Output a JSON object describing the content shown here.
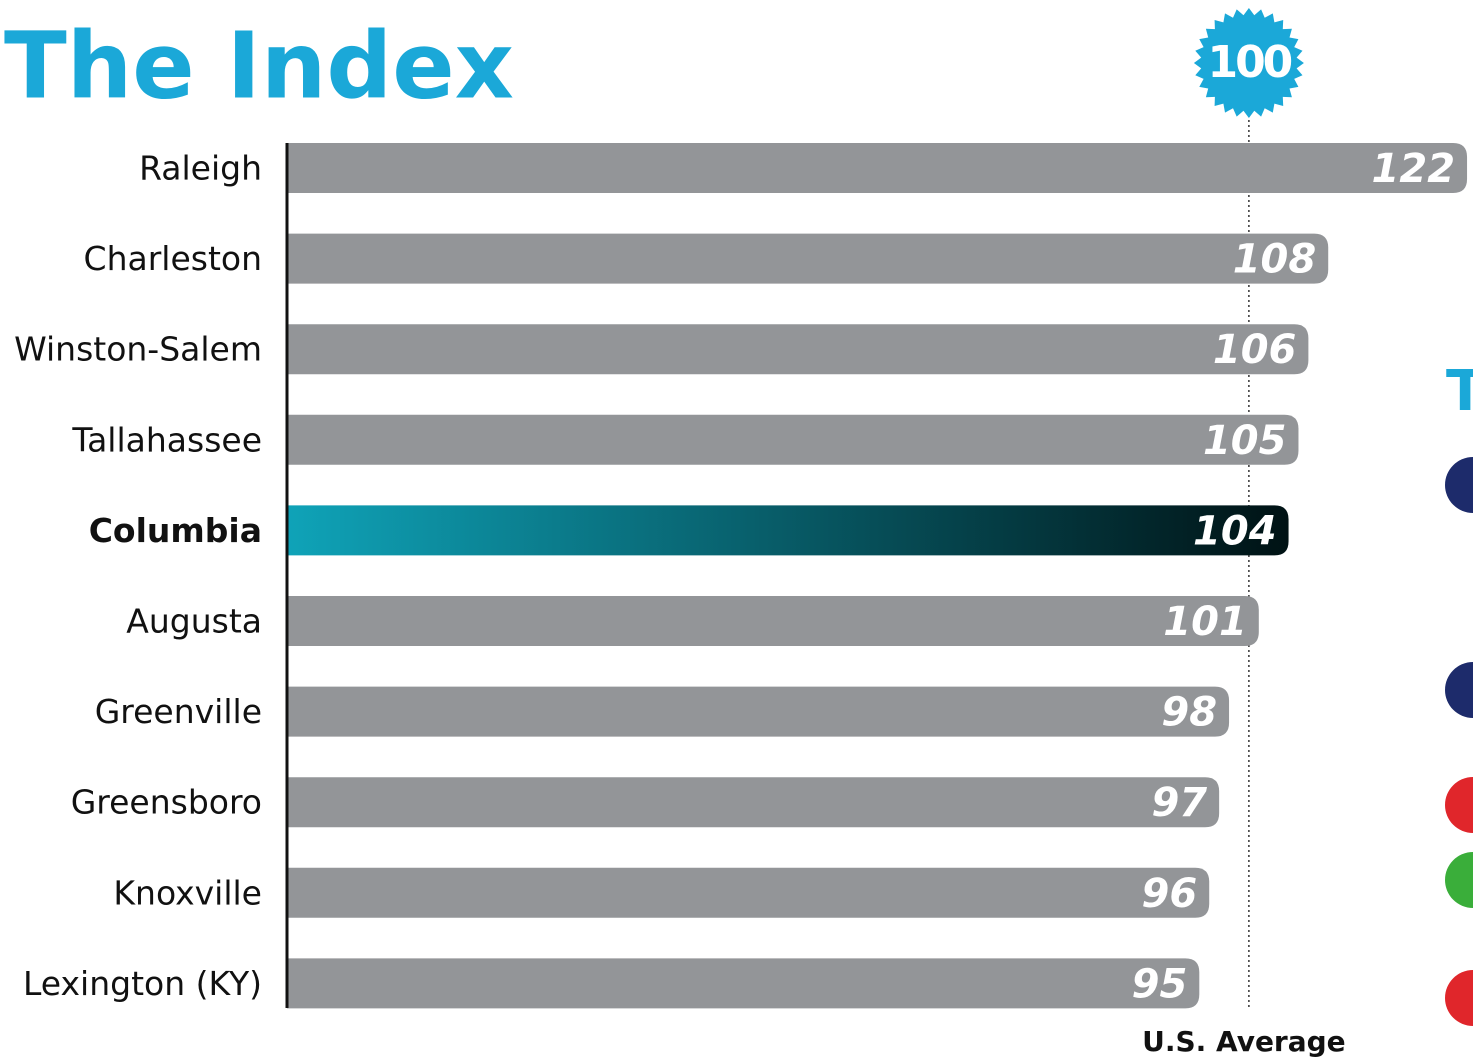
{
  "chart_data": {
    "type": "barh",
    "title": "The Index",
    "categories": [
      "Raleigh",
      "Charleston",
      "Winston-Salem",
      "Tallahassee",
      "Columbia",
      "Augusta",
      "Greenville",
      "Greensboro",
      "Knoxville",
      "Lexington (KY)"
    ],
    "values": [
      122,
      108,
      106,
      105,
      104,
      101,
      98,
      97,
      96,
      95
    ],
    "color": "#939598",
    "highlight": "Columbia",
    "highlight_colors": [
      "#0fa3b8",
      "#001214"
    ],
    "xlim": [
      3,
      122.6
    ],
    "reference": {
      "value": 100,
      "label": "U.S. Average",
      "color": "#1ba8d8"
    }
  }
}
